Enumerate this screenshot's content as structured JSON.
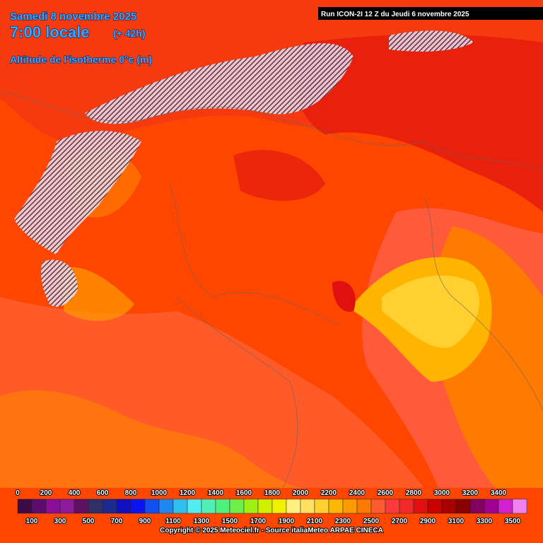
{
  "header": {
    "date": "Samedi 8 novembre 2025",
    "time": "7:00 locale",
    "lead": "(+ 42h)",
    "variable": "Altitude de l'isotherme 0°c (m)",
    "run": "Run ICON-2I 12 Z du Jeudi 6 novembre 2025"
  },
  "legend": {
    "top_labels": [
      0,
      200,
      400,
      600,
      800,
      1000,
      1200,
      1400,
      1600,
      1800,
      2000,
      2200,
      2400,
      2600,
      2800,
      3000,
      3200,
      3400
    ],
    "bottom_labels": [
      100,
      300,
      500,
      700,
      900,
      1100,
      1300,
      1500,
      1700,
      1900,
      2100,
      2300,
      2500,
      2700,
      2900,
      3100,
      3300,
      3500
    ],
    "colors": [
      "#3c0a46",
      "#5c0c70",
      "#8a0e9a",
      "#8c1a9a",
      "#601060",
      "#303068",
      "#1a2a90",
      "#1010c0",
      "#0a14f0",
      "#1050f0",
      "#1e88f0",
      "#30c0f0",
      "#50eef0",
      "#50f0b4",
      "#50f07c",
      "#6ef04a",
      "#a0f014",
      "#d0f000",
      "#f0f000",
      "#fff080",
      "#ffe060",
      "#ffd030",
      "#ffb800",
      "#ff9a00",
      "#ff7a00",
      "#ff5a30",
      "#ff3a3a",
      "#f02a2a",
      "#e01010",
      "#c80000",
      "#a80000",
      "#880000",
      "#840060",
      "#a00090",
      "#d020d0",
      "#f080f0"
    ]
  },
  "footer": {
    "copyright": "Copyright © 2025 Meteociel.fr - Source italiaMeteo ARPAE CINECA"
  }
}
